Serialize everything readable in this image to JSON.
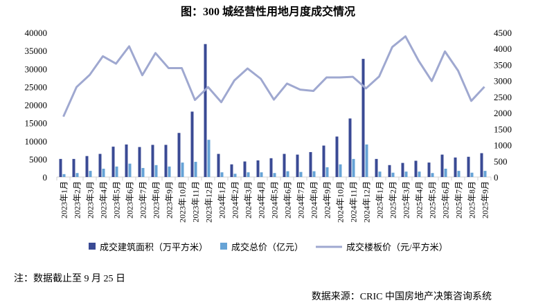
{
  "title": "图：300 城经营性用地月度成交情况",
  "note": "注：数据截止至 9 月 25 日",
  "source": "数据来源：CRIC 中国房地产决策咨询系统",
  "chart_data": {
    "type": "bar+line",
    "categories": [
      "2023年1月",
      "2023年2月",
      "2023年3月",
      "2023年4月",
      "2023年5月",
      "2023年6月",
      "2023年7月",
      "2023年8月",
      "2023年9月",
      "2023年10月",
      "2023年11月",
      "2023年12月",
      "2024年1月",
      "2024年2月",
      "2024年3月",
      "2024年4月",
      "2024年5月",
      "2024年6月",
      "2024年7月",
      "2024年8月",
      "2024年9月",
      "2024年10月",
      "2024年11月",
      "2024年12月",
      "2025年1月",
      "2025年2月",
      "2025年3月",
      "2025年4月",
      "2025年5月",
      "2025年6月",
      "2025年7月",
      "2025年8月",
      "2025年9月"
    ],
    "series": [
      {
        "name": "成交建筑面积（万平方米）",
        "type": "bar",
        "axis": "left",
        "color": "#3a4a94",
        "values": [
          5000,
          5000,
          5800,
          6400,
          8400,
          9000,
          8300,
          8900,
          8900,
          12200,
          18100,
          36800,
          6400,
          3500,
          4300,
          4600,
          5200,
          6400,
          6200,
          6900,
          8700,
          11200,
          16200,
          32700,
          5000,
          3300,
          3900,
          4500,
          4000,
          6200,
          5400,
          5600,
          6600
        ]
      },
      {
        "name": "成交总价（亿元）",
        "type": "bar",
        "axis": "left",
        "color": "#66a3d6",
        "values": [
          800,
          1100,
          1700,
          2300,
          2900,
          3700,
          2500,
          3300,
          2900,
          4000,
          4200,
          10300,
          1300,
          900,
          1300,
          1300,
          1100,
          1600,
          1400,
          1600,
          2700,
          3500,
          5000,
          9000,
          1500,
          1200,
          1500,
          1500,
          1100,
          2300,
          1700,
          1200,
          1700
        ]
      },
      {
        "name": "成交楼板价（元/平方米）",
        "type": "line",
        "axis": "right",
        "color": "#9fa8d0",
        "values": [
          1880,
          2800,
          3180,
          3760,
          3530,
          4070,
          3170,
          3860,
          3390,
          3390,
          2400,
          2800,
          2330,
          3010,
          3380,
          3060,
          2410,
          2910,
          2720,
          2680,
          3100,
          3100,
          3120,
          2760,
          3130,
          4050,
          4380,
          3620,
          2990,
          3910,
          3310,
          2370,
          2810
        ]
      }
    ],
    "ylim_left": [
      0,
      40000
    ],
    "yticks_left": [
      "0",
      "5000",
      "10000",
      "15000",
      "20000",
      "25000",
      "30000",
      "35000",
      "40000"
    ],
    "ylim_right": [
      0,
      4500
    ],
    "yticks_right": [
      "0",
      "500",
      "1000",
      "1500",
      "2000",
      "2500",
      "3000",
      "3500",
      "4000",
      "4500"
    ],
    "grid": false,
    "legend": "bottom"
  }
}
